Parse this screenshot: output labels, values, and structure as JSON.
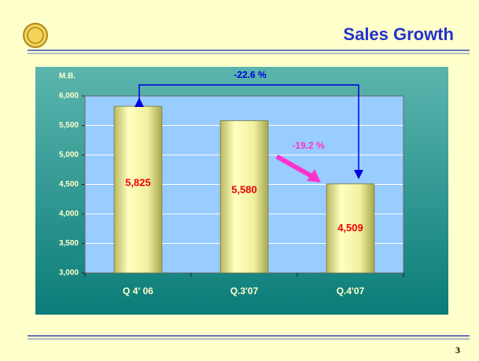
{
  "chart_data": {
    "type": "bar",
    "title": "Sales Growth",
    "y_label": "M.B.",
    "categories": [
      "Q 4' 06",
      "Q.3'07",
      "Q.4'07"
    ],
    "values": [
      5825,
      5580,
      4509
    ],
    "value_labels": [
      "5,825",
      "5,580",
      "4,509"
    ],
    "color": "#eeee99",
    "value_label_color": "#ee0000",
    "ylim": [
      3000,
      6000
    ],
    "yticks": [
      {
        "value": 3000,
        "label": "3,000"
      },
      {
        "value": 3500,
        "label": "3,500"
      },
      {
        "value": 4000,
        "label": "4,000"
      },
      {
        "value": 4500,
        "label": "4,500"
      },
      {
        "value": 5000,
        "label": "5,000"
      },
      {
        "value": 5500,
        "label": "5,500"
      },
      {
        "value": 6000,
        "label": "6,000"
      }
    ],
    "grid": true,
    "annotations": [
      "-22.6 %",
      "-19.2 %"
    ]
  },
  "page_number": "3"
}
